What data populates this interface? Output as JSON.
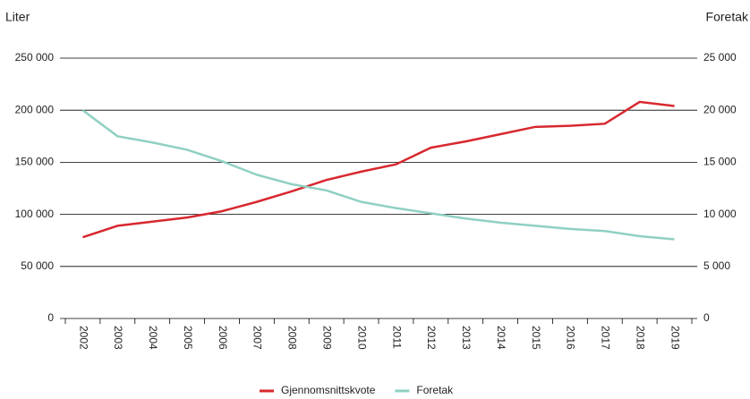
{
  "chart_data": {
    "type": "line",
    "ylabel": "Liter",
    "y2label": "Foretak",
    "categories": [
      "2002",
      "2003",
      "2004",
      "2005",
      "2006",
      "2007",
      "2008",
      "2009",
      "2010",
      "2011",
      "2012",
      "2013",
      "2014",
      "2015",
      "2016",
      "2017",
      "2018",
      "2019"
    ],
    "series": [
      {
        "name": "Gjennomsnittskvote",
        "color": "#d7282f",
        "axis": "y",
        "values": [
          78000,
          89000,
          93000,
          97000,
          103000,
          112000,
          122000,
          133000,
          141000,
          148000,
          164000,
          170000,
          177000,
          184000,
          185000,
          187000,
          208000,
          204000
        ]
      },
      {
        "name": "Foretak",
        "color": "#8fd0c3",
        "axis": "y2",
        "values": [
          20000,
          17500,
          16900,
          16200,
          15100,
          13800,
          12900,
          12300,
          11200,
          10600,
          10100,
          9600,
          9200,
          8900,
          8600,
          8400,
          7900,
          7600
        ]
      }
    ],
    "ylim": [
      0,
      250000
    ],
    "yticks": [
      0,
      {
        "value": 50000,
        "label": "50 000"
      },
      {
        "value": 100000,
        "label": "100 000"
      },
      {
        "value": 150000,
        "label": "150 000"
      },
      {
        "value": 200000,
        "label": "200 000"
      },
      {
        "value": 250000,
        "label": "250 000"
      }
    ],
    "y2lim": [
      0,
      25000
    ],
    "y2ticks": [
      0,
      {
        "value": 5000,
        "label": "5 000"
      },
      {
        "value": 10000,
        "label": "10 000"
      },
      {
        "value": 15000,
        "label": "15 000"
      },
      {
        "value": 20000,
        "label": "20 000"
      },
      {
        "value": 25000,
        "label": "25 000"
      }
    ],
    "grid": true,
    "legend": "bottom"
  }
}
